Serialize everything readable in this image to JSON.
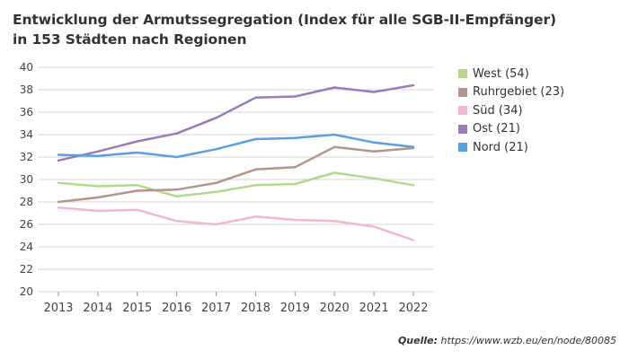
{
  "title_line1": "Entwicklung der Armutssegregation (Index für alle SGB-II-Empfänger)",
  "title_line2": "in 153 Städten nach Regionen",
  "source_label": "Quelle:",
  "source_url": "https://www.wzb.eu/en/node/80085",
  "chart_data": {
    "type": "line",
    "title": "Entwicklung der Armutssegregation (Index für alle SGB-II-Empfänger) in 153 Städten nach Regionen",
    "xlabel": "",
    "ylabel": "",
    "x": [
      "2013",
      "2014",
      "2015",
      "2016",
      "2017",
      "2018",
      "2019",
      "2020",
      "2021",
      "2022"
    ],
    "ylim": [
      20,
      40
    ],
    "yticks": [
      "20",
      "22",
      "24",
      "26",
      "28",
      "30",
      "32",
      "34",
      "36",
      "38",
      "40"
    ],
    "grid": "horizontal",
    "legend_position": "right",
    "series": [
      {
        "name": "West (54)",
        "color": "#b5d98a",
        "values": [
          29.7,
          29.4,
          29.5,
          28.5,
          28.9,
          29.5,
          29.6,
          30.6,
          30.1,
          29.5
        ]
      },
      {
        "name": "Ruhrgebiet (23)",
        "color": "#b5948c",
        "values": [
          28.0,
          28.4,
          29.0,
          29.1,
          29.7,
          30.9,
          31.1,
          32.9,
          32.5,
          32.8
        ]
      },
      {
        "name": "Süd (34)",
        "color": "#f0b8d2",
        "values": [
          27.5,
          27.2,
          27.3,
          26.3,
          26.0,
          26.7,
          26.4,
          26.3,
          25.8,
          24.6
        ]
      },
      {
        "name": "Ost (21)",
        "color": "#9b7bb5",
        "values": [
          31.7,
          32.5,
          33.4,
          34.1,
          35.5,
          37.3,
          37.4,
          38.2,
          37.8,
          38.4
        ]
      },
      {
        "name": "Nord (21)",
        "color": "#5a9fdf",
        "values": [
          32.2,
          32.1,
          32.4,
          32.0,
          32.7,
          33.6,
          33.7,
          34.0,
          33.3,
          32.9
        ]
      }
    ]
  }
}
